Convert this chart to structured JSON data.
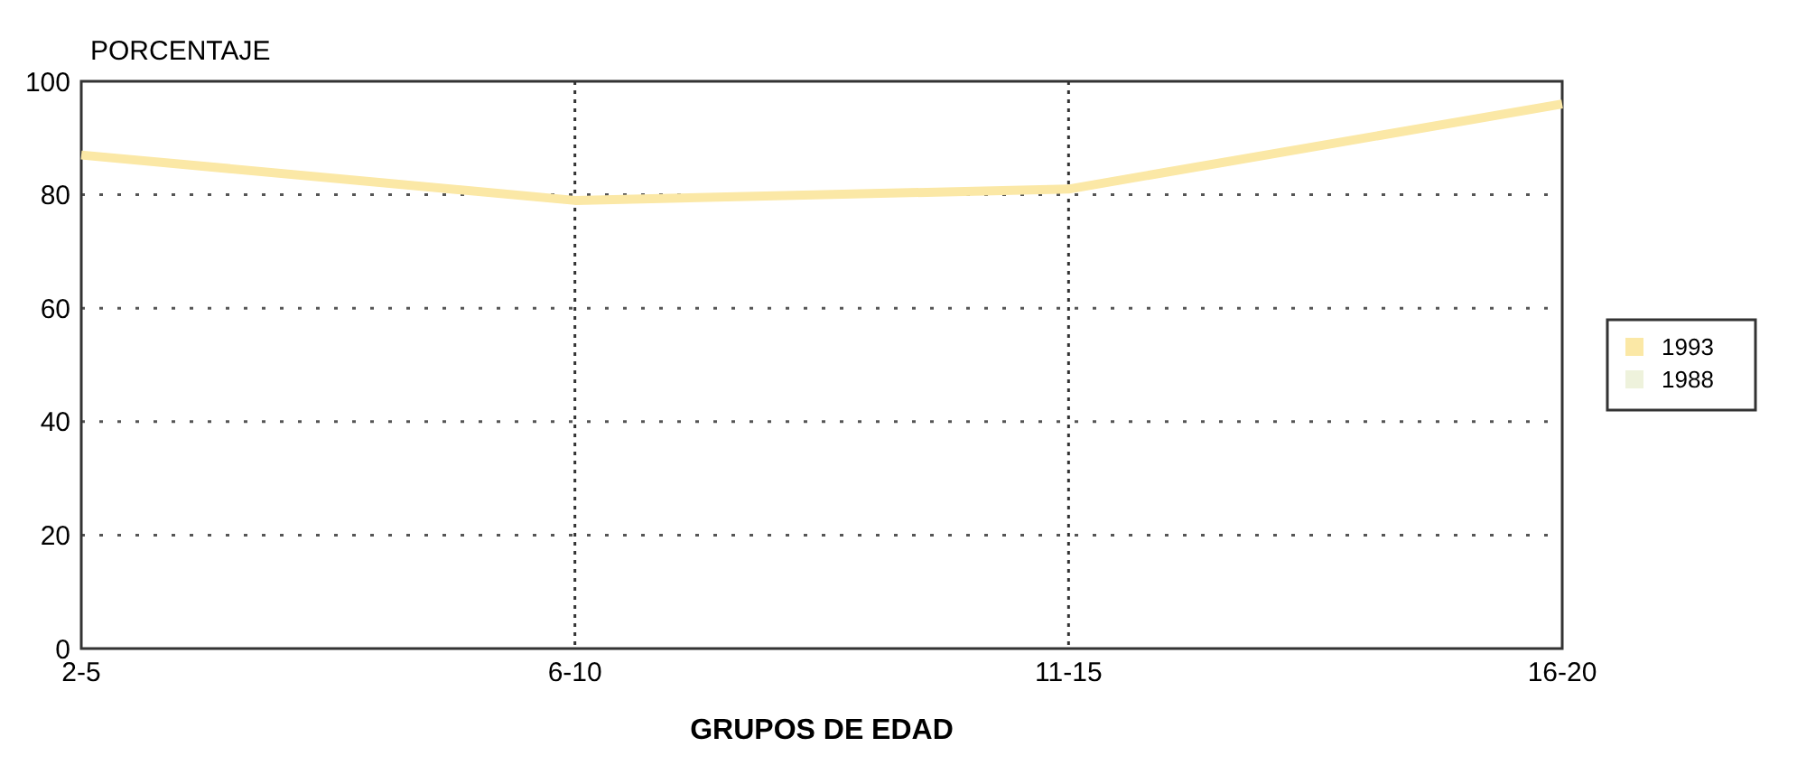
{
  "chart_data": {
    "type": "line",
    "ylabel": "PORCENTAJE",
    "xlabel": "GRUPOS DE EDAD",
    "categories": [
      "2-5",
      "6-10",
      "11-15",
      "16-20"
    ],
    "series": [
      {
        "name": "1993",
        "color": "#fbe8a6",
        "values": [
          87,
          79,
          81,
          96
        ]
      },
      {
        "name": "1988",
        "color": "#eef2dc",
        "values": [
          null,
          null,
          null,
          null
        ]
      }
    ],
    "ylim": [
      0,
      100
    ],
    "yticks": [
      0,
      20,
      40,
      60,
      80,
      100
    ],
    "grid": true,
    "legend": "right",
    "marker": "none",
    "line_style": "solid"
  }
}
